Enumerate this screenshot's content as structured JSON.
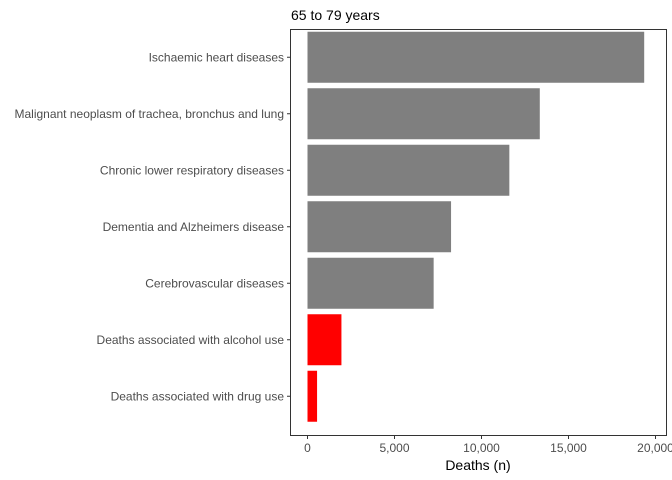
{
  "chart_data": {
    "type": "bar",
    "orientation": "horizontal",
    "title": "65 to 79 years",
    "xlabel": "Deaths (n)",
    "ylabel": "",
    "xlim": [
      0,
      20000
    ],
    "xticks": [
      0,
      5000,
      10000,
      15000,
      20000
    ],
    "xtick_labels": [
      "0",
      "5,000",
      "10,000",
      "15,000",
      "20,000"
    ],
    "grid": false,
    "legend": "none",
    "categories": [
      "Ischaemic heart diseases",
      "Malignant neoplasm of trachea, bronchus and lung",
      "Chronic lower respiratory diseases",
      "Dementia and Alzheimers disease",
      "Cerebrovascular diseases",
      "Deaths associated with alcohol use",
      "Deaths associated with drug use"
    ],
    "values": [
      19350,
      13350,
      11600,
      8250,
      7250,
      1950,
      550
    ],
    "colors": [
      "#7f7f7f",
      "#7f7f7f",
      "#7f7f7f",
      "#7f7f7f",
      "#7f7f7f",
      "#ff0000",
      "#ff0000"
    ]
  }
}
